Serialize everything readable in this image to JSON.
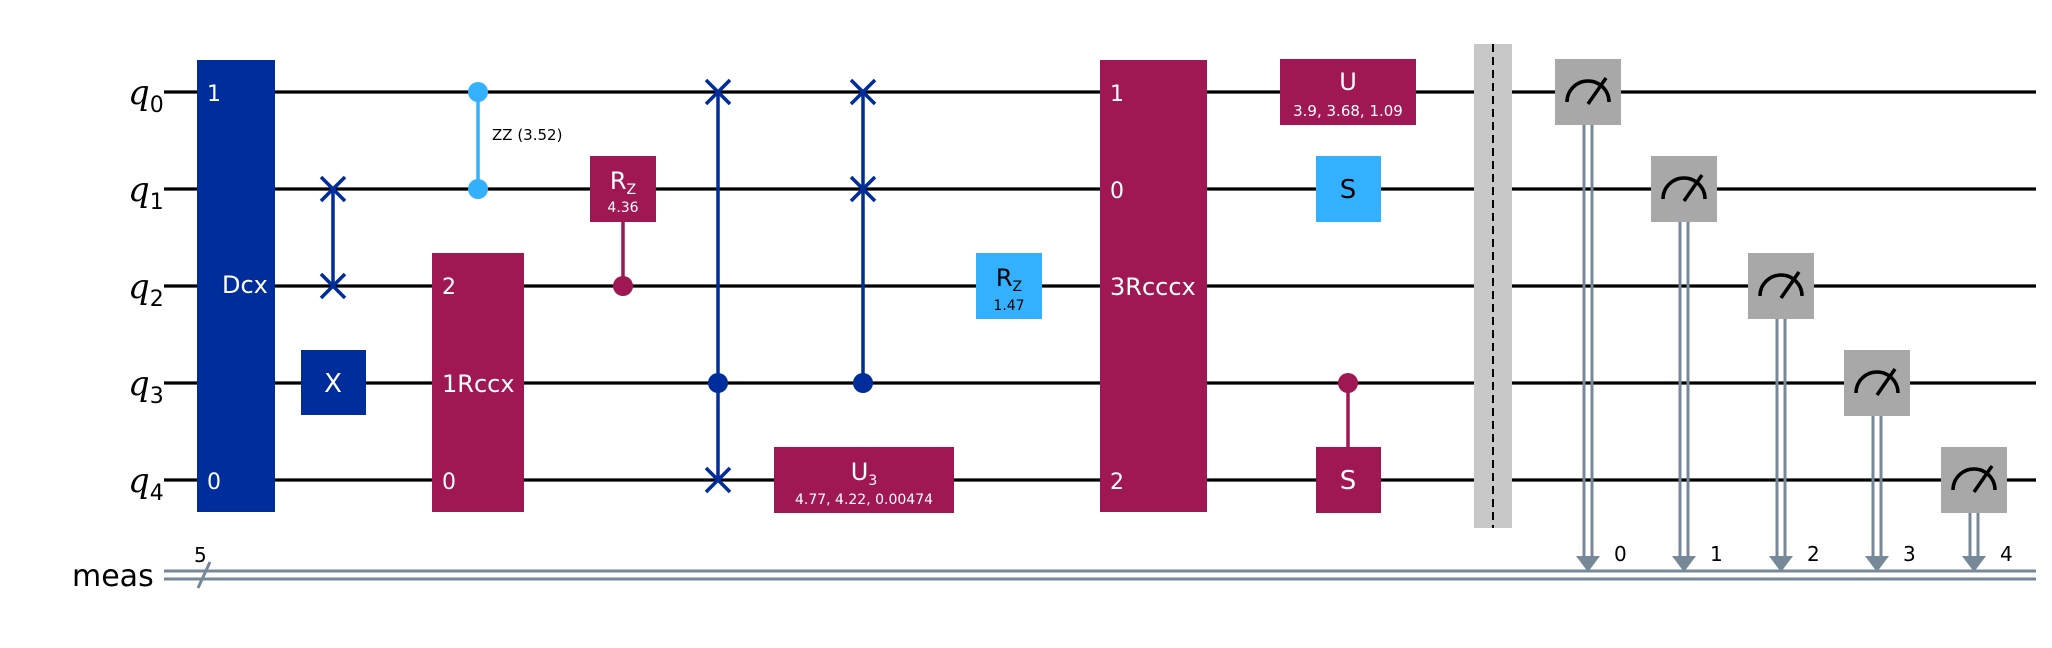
{
  "qubits": [
    "q",
    "q",
    "q",
    "q",
    "q"
  ],
  "qubit_indices": [
    "0",
    "1",
    "2",
    "3",
    "4"
  ],
  "classical_register": "meas",
  "classical_width": "5",
  "gates": {
    "dcx": {
      "label": "Dcx",
      "top_index": "1",
      "bottom_index": "0"
    },
    "swap_q1_q2": {
      "type": "swap"
    },
    "x_q3": {
      "label": "X"
    },
    "rzz": {
      "label": "ZZ (3.52)"
    },
    "rccx": {
      "label": "1Rccx",
      "top_index": "2",
      "bottom_index": "0"
    },
    "crz": {
      "label": "R",
      "sub": "Z",
      "param": "4.36"
    },
    "cswap_1": {
      "type": "cswap"
    },
    "u3": {
      "label": "U",
      "sub": "3",
      "param": "4.77, 4.22, 0.00474"
    },
    "cswap_2": {
      "type": "cswap"
    },
    "rz": {
      "label": "R",
      "sub": "Z",
      "param": "1.47"
    },
    "rcccx": {
      "label": "3Rcccx",
      "idx_q0": "1",
      "idx_q1": "0",
      "idx_q4": "2"
    },
    "u": {
      "label": "U",
      "param": "3.9, 3.68, 1.09"
    },
    "s_q1": {
      "label": "S"
    },
    "cs": {
      "label": "S"
    }
  },
  "measurements": [
    "0",
    "1",
    "2",
    "3",
    "4"
  ],
  "colors": {
    "dark_blue": "#002d9c",
    "magenta": "#9f1853",
    "light_blue": "#33b1ff",
    "measure_gray": "#a8a8a8",
    "barrier_gray": "#c8c8c8",
    "classical_wire": "#778899"
  }
}
